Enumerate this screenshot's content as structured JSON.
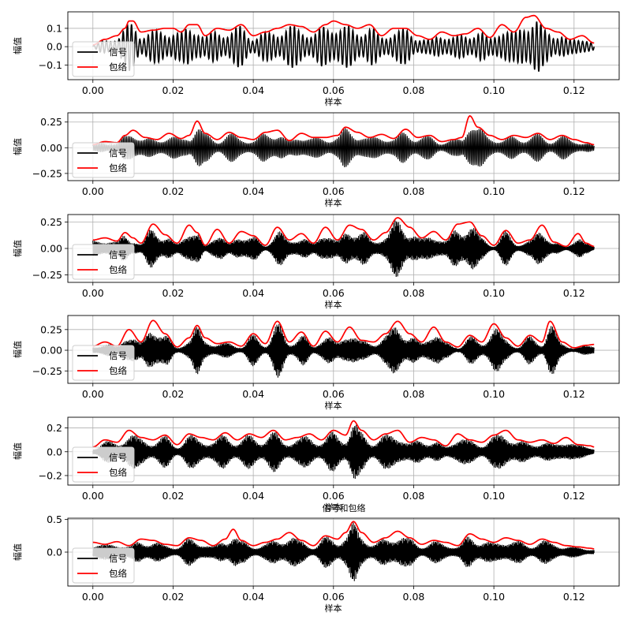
{
  "figure_title": "信号和包络",
  "colors": {
    "signal": "#000000",
    "envelope": "#ff0000",
    "grid": "#b0b0b0"
  },
  "chart_data": [
    {
      "type": "line",
      "xlabel": "样本",
      "ylabel": "幅值",
      "xlim": [
        -0.00625,
        0.13125
      ],
      "ylim": [
        -0.18,
        0.19
      ],
      "xticks": [
        0.0,
        0.02,
        0.04,
        0.06,
        0.08,
        0.1,
        0.12
      ],
      "xtick_labels": [
        "0.00",
        "0.02",
        "0.04",
        "0.06",
        "0.08",
        "0.10",
        "0.12"
      ],
      "yticks": [
        -0.1,
        0.0,
        0.1
      ],
      "ytick_labels": [
        "−0.1",
        "0.0",
        "0.1"
      ],
      "grid": true,
      "legend_position": "lower-left",
      "series": [
        {
          "name": "信号",
          "color": "#000000",
          "cycles": 120
        },
        {
          "name": "包络",
          "color": "#ff0000",
          "x": [
            0.0,
            0.003,
            0.006,
            0.008,
            0.009,
            0.01,
            0.012,
            0.015,
            0.018,
            0.02,
            0.022,
            0.024,
            0.026,
            0.028,
            0.031,
            0.034,
            0.037,
            0.04,
            0.043,
            0.046,
            0.049,
            0.052,
            0.055,
            0.058,
            0.06,
            0.063,
            0.066,
            0.069,
            0.072,
            0.075,
            0.078,
            0.081,
            0.084,
            0.087,
            0.09,
            0.093,
            0.096,
            0.099,
            0.102,
            0.105,
            0.108,
            0.11,
            0.113,
            0.116,
            0.119,
            0.122,
            0.125
          ],
          "y": [
            0.01,
            0.04,
            0.06,
            0.1,
            0.14,
            0.14,
            0.08,
            0.09,
            0.1,
            0.1,
            0.08,
            0.12,
            0.12,
            0.06,
            0.1,
            0.09,
            0.12,
            0.06,
            0.08,
            0.1,
            0.12,
            0.11,
            0.08,
            0.12,
            0.14,
            0.12,
            0.1,
            0.12,
            0.06,
            0.1,
            0.1,
            0.06,
            0.04,
            0.08,
            0.06,
            0.07,
            0.1,
            0.05,
            0.12,
            0.08,
            0.16,
            0.17,
            0.1,
            0.08,
            0.04,
            0.06,
            0.02
          ]
        }
      ]
    },
    {
      "type": "line",
      "xlabel": "样本",
      "ylabel": "幅值",
      "xlim": [
        -0.00625,
        0.13125
      ],
      "ylim": [
        -0.32,
        0.34
      ],
      "xticks": [
        0.0,
        0.02,
        0.04,
        0.06,
        0.08,
        0.1,
        0.12
      ],
      "xtick_labels": [
        "0.00",
        "0.02",
        "0.04",
        "0.06",
        "0.08",
        "0.10",
        "0.12"
      ],
      "yticks": [
        -0.25,
        0.0,
        0.25
      ],
      "ytick_labels": [
        "−0.25",
        "0.00",
        "0.25"
      ],
      "grid": true,
      "legend_position": "lower-left",
      "series": [
        {
          "name": "信号",
          "color": "#000000",
          "cycles": 300
        },
        {
          "name": "包络",
          "color": "#ff0000",
          "x": [
            0.0,
            0.003,
            0.006,
            0.008,
            0.01,
            0.013,
            0.016,
            0.019,
            0.022,
            0.024,
            0.026,
            0.028,
            0.031,
            0.034,
            0.037,
            0.04,
            0.043,
            0.046,
            0.049,
            0.052,
            0.055,
            0.058,
            0.061,
            0.063,
            0.066,
            0.069,
            0.072,
            0.075,
            0.078,
            0.081,
            0.084,
            0.087,
            0.09,
            0.092,
            0.094,
            0.096,
            0.099,
            0.102,
            0.105,
            0.108,
            0.111,
            0.114,
            0.117,
            0.12,
            0.123,
            0.125
          ],
          "y": [
            0.03,
            0.06,
            0.05,
            0.12,
            0.17,
            0.1,
            0.08,
            0.14,
            0.09,
            0.12,
            0.26,
            0.14,
            0.08,
            0.15,
            0.1,
            0.08,
            0.15,
            0.17,
            0.07,
            0.14,
            0.1,
            0.1,
            0.12,
            0.2,
            0.15,
            0.1,
            0.13,
            0.09,
            0.18,
            0.1,
            0.12,
            0.06,
            0.08,
            0.1,
            0.31,
            0.2,
            0.12,
            0.08,
            0.12,
            0.1,
            0.14,
            0.08,
            0.12,
            0.08,
            0.05,
            0.03
          ]
        }
      ]
    },
    {
      "type": "line",
      "xlabel": "样本",
      "ylabel": "幅值",
      "xlim": [
        -0.00625,
        0.13125
      ],
      "ylim": [
        -0.32,
        0.32
      ],
      "xticks": [
        0.0,
        0.02,
        0.04,
        0.06,
        0.08,
        0.1,
        0.12
      ],
      "xtick_labels": [
        "0.00",
        "0.02",
        "0.04",
        "0.06",
        "0.08",
        "0.10",
        "0.12"
      ],
      "yticks": [
        -0.25,
        0.0,
        0.25
      ],
      "ytick_labels": [
        "−0.25",
        "0.00",
        "0.25"
      ],
      "grid": true,
      "legend_position": "lower-left",
      "series": [
        {
          "name": "信号",
          "color": "#000000",
          "cycles": 700
        },
        {
          "name": "包络",
          "color": "#ff0000",
          "x": [
            0.0,
            0.003,
            0.006,
            0.008,
            0.01,
            0.012,
            0.015,
            0.018,
            0.021,
            0.024,
            0.026,
            0.028,
            0.031,
            0.034,
            0.037,
            0.04,
            0.043,
            0.046,
            0.049,
            0.052,
            0.055,
            0.058,
            0.061,
            0.064,
            0.067,
            0.07,
            0.073,
            0.076,
            0.079,
            0.082,
            0.085,
            0.088,
            0.091,
            0.094,
            0.097,
            0.1,
            0.103,
            0.106,
            0.109,
            0.112,
            0.115,
            0.118,
            0.121,
            0.123,
            0.125
          ],
          "y": [
            0.08,
            0.1,
            0.07,
            0.15,
            0.1,
            0.05,
            0.23,
            0.13,
            0.05,
            0.22,
            0.15,
            0.03,
            0.18,
            0.05,
            0.16,
            0.12,
            0.03,
            0.2,
            0.08,
            0.14,
            0.05,
            0.2,
            0.08,
            0.22,
            0.18,
            0.08,
            0.15,
            0.29,
            0.2,
            0.1,
            0.16,
            0.08,
            0.23,
            0.25,
            0.12,
            0.03,
            0.17,
            0.05,
            0.08,
            0.22,
            0.06,
            0.02,
            0.14,
            0.05,
            0.02
          ]
        }
      ]
    },
    {
      "type": "line",
      "xlabel": "样本",
      "ylabel": "幅值",
      "xlim": [
        -0.00625,
        0.13125
      ],
      "ylim": [
        -0.4,
        0.42
      ],
      "xticks": [
        0.0,
        0.02,
        0.04,
        0.06,
        0.08,
        0.1,
        0.12
      ],
      "xtick_labels": [
        "0.00",
        "0.02",
        "0.04",
        "0.06",
        "0.08",
        "0.10",
        "0.12"
      ],
      "yticks": [
        -0.25,
        0.0,
        0.25
      ],
      "ytick_labels": [
        "−0.25",
        "0.00",
        "0.25"
      ],
      "grid": true,
      "legend_position": "lower-left",
      "series": [
        {
          "name": "信号",
          "color": "#000000",
          "cycles": 700
        },
        {
          "name": "包络",
          "color": "#ff0000",
          "x": [
            0.0,
            0.003,
            0.006,
            0.009,
            0.012,
            0.015,
            0.018,
            0.021,
            0.024,
            0.026,
            0.028,
            0.031,
            0.034,
            0.037,
            0.04,
            0.043,
            0.046,
            0.049,
            0.052,
            0.055,
            0.058,
            0.061,
            0.064,
            0.067,
            0.07,
            0.073,
            0.076,
            0.079,
            0.082,
            0.085,
            0.088,
            0.091,
            0.094,
            0.097,
            0.1,
            0.103,
            0.106,
            0.109,
            0.112,
            0.114,
            0.117,
            0.12,
            0.123,
            0.125
          ],
          "y": [
            0.05,
            0.1,
            0.05,
            0.25,
            0.1,
            0.36,
            0.2,
            0.04,
            0.15,
            0.3,
            0.15,
            0.08,
            0.1,
            0.05,
            0.2,
            0.08,
            0.35,
            0.1,
            0.22,
            0.05,
            0.23,
            0.1,
            0.28,
            0.12,
            0.1,
            0.2,
            0.35,
            0.2,
            0.1,
            0.28,
            0.1,
            0.04,
            0.18,
            0.1,
            0.32,
            0.15,
            0.05,
            0.18,
            0.1,
            0.35,
            0.1,
            0.03,
            0.06,
            0.07
          ]
        }
      ]
    },
    {
      "type": "line",
      "xlabel": "样本",
      "ylabel": "幅值",
      "xlim": [
        -0.00625,
        0.13125
      ],
      "ylim": [
        -0.28,
        0.29
      ],
      "xticks": [
        0.0,
        0.02,
        0.04,
        0.06,
        0.08,
        0.1,
        0.12
      ],
      "xtick_labels": [
        "0.00",
        "0.02",
        "0.04",
        "0.06",
        "0.08",
        "0.10",
        "0.12"
      ],
      "yticks": [
        -0.2,
        0.0,
        0.2
      ],
      "ytick_labels": [
        "−0.2",
        "0.0",
        "0.2"
      ],
      "grid": true,
      "legend_position": "lower-left",
      "series": [
        {
          "name": "信号",
          "color": "#000000",
          "cycles": 700
        },
        {
          "name": "包络",
          "color": "#ff0000",
          "x": [
            0.0,
            0.003,
            0.006,
            0.009,
            0.012,
            0.015,
            0.018,
            0.021,
            0.024,
            0.027,
            0.03,
            0.033,
            0.036,
            0.039,
            0.042,
            0.045,
            0.048,
            0.051,
            0.054,
            0.057,
            0.06,
            0.063,
            0.065,
            0.067,
            0.07,
            0.073,
            0.076,
            0.079,
            0.082,
            0.085,
            0.088,
            0.091,
            0.094,
            0.097,
            0.1,
            0.103,
            0.106,
            0.109,
            0.112,
            0.115,
            0.118,
            0.121,
            0.124,
            0.125
          ],
          "y": [
            0.04,
            0.1,
            0.08,
            0.18,
            0.12,
            0.1,
            0.14,
            0.06,
            0.15,
            0.12,
            0.1,
            0.16,
            0.1,
            0.15,
            0.12,
            0.18,
            0.1,
            0.12,
            0.15,
            0.1,
            0.18,
            0.14,
            0.26,
            0.18,
            0.1,
            0.15,
            0.18,
            0.08,
            0.12,
            0.1,
            0.05,
            0.15,
            0.1,
            0.08,
            0.14,
            0.18,
            0.1,
            0.08,
            0.1,
            0.07,
            0.12,
            0.06,
            0.05,
            0.04
          ]
        }
      ]
    },
    {
      "type": "line",
      "xlabel": "样本",
      "ylabel": "幅值",
      "xlim": [
        -0.00625,
        0.13125
      ],
      "ylim": [
        -0.52,
        0.52
      ],
      "xticks": [
        0.0,
        0.02,
        0.04,
        0.06,
        0.08,
        0.1,
        0.12
      ],
      "xtick_labels": [
        "0.00",
        "0.02",
        "0.04",
        "0.06",
        "0.08",
        "0.10",
        "0.12"
      ],
      "yticks": [
        0.0,
        0.5
      ],
      "ytick_labels": [
        "0.0",
        "0.5"
      ],
      "grid": true,
      "legend_position": "lower-left",
      "series": [
        {
          "name": "信号",
          "color": "#000000",
          "cycles": 700
        },
        {
          "name": "包络",
          "color": "#ff0000",
          "x": [
            0.0,
            0.003,
            0.006,
            0.009,
            0.012,
            0.015,
            0.018,
            0.021,
            0.024,
            0.027,
            0.03,
            0.033,
            0.035,
            0.037,
            0.04,
            0.043,
            0.046,
            0.049,
            0.052,
            0.055,
            0.058,
            0.061,
            0.063,
            0.065,
            0.067,
            0.07,
            0.073,
            0.076,
            0.079,
            0.082,
            0.085,
            0.088,
            0.091,
            0.094,
            0.097,
            0.1,
            0.103,
            0.106,
            0.109,
            0.112,
            0.115,
            0.118,
            0.121,
            0.124,
            0.125
          ],
          "y": [
            0.15,
            0.12,
            0.16,
            0.1,
            0.2,
            0.18,
            0.12,
            0.1,
            0.22,
            0.18,
            0.1,
            0.2,
            0.35,
            0.18,
            0.1,
            0.15,
            0.2,
            0.3,
            0.18,
            0.1,
            0.25,
            0.2,
            0.3,
            0.47,
            0.3,
            0.15,
            0.22,
            0.32,
            0.22,
            0.12,
            0.18,
            0.15,
            0.1,
            0.28,
            0.2,
            0.15,
            0.22,
            0.18,
            0.12,
            0.2,
            0.15,
            0.1,
            0.08,
            0.06,
            0.05
          ]
        }
      ]
    }
  ]
}
